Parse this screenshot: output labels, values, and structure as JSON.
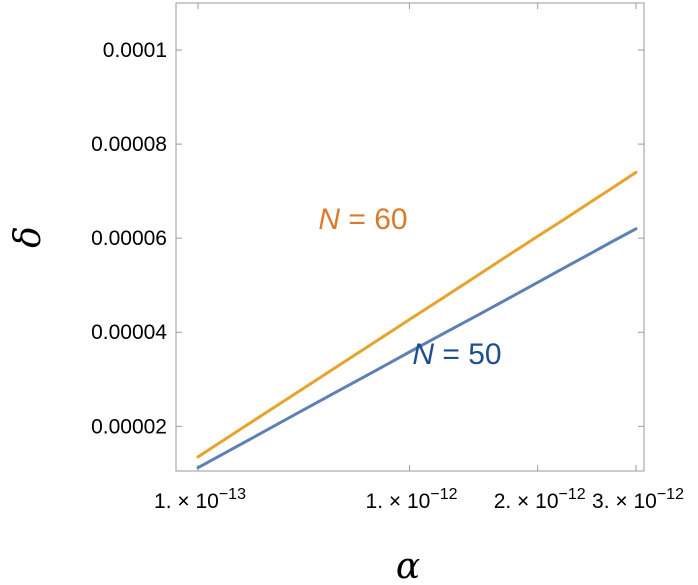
{
  "chart_data": {
    "type": "line",
    "title": "",
    "xlabel": "α",
    "ylabel": "δ",
    "x_ticks": [
      {
        "value": 1e-13,
        "mantissa": "1.",
        "exponent": "−13"
      },
      {
        "value": 1e-12,
        "mantissa": "1.",
        "exponent": "−12"
      },
      {
        "value": 2e-12,
        "mantissa": "2.",
        "exponent": "−12"
      },
      {
        "value": 3e-12,
        "mantissa": "3.",
        "exponent": "−12"
      }
    ],
    "y_ticks": [
      {
        "value": 2e-05,
        "label": "0.00002"
      },
      {
        "value": 4e-05,
        "label": "0.00004"
      },
      {
        "value": 6e-05,
        "label": "0.00006"
      },
      {
        "value": 8e-05,
        "label": "0.00008"
      },
      {
        "value": 0.0001,
        "label": "0.0001"
      }
    ],
    "ylim": [
      1.05e-05,
      0.00011
    ],
    "grid": false,
    "series": [
      {
        "name": "N = 60",
        "label_parts": {
          "var": "N",
          "rest": " = 60"
        },
        "label_color": "#DC7A2C",
        "color": "#E6A32E",
        "x": [
          1e-13,
          2e-13,
          4e-13,
          6e-13,
          8e-13,
          1e-12,
          1.25e-12,
          1.5e-12,
          1.75e-12,
          2e-12,
          2.25e-12,
          2.5e-12,
          2.75e-12,
          3e-12
        ],
        "y": [
          1.35e-05,
          1.91e-05,
          2.7e-05,
          3.31e-05,
          3.82e-05,
          4.27e-05,
          4.77e-05,
          5.23e-05,
          5.65e-05,
          6.04e-05,
          6.4e-05,
          6.75e-05,
          7.08e-05,
          7.4e-05
        ]
      },
      {
        "name": "N = 50",
        "label_parts": {
          "var": "N",
          "rest": " = 50"
        },
        "label_color": "#1F4E8C",
        "color": "#5E81B5",
        "x": [
          1e-13,
          2e-13,
          4e-13,
          6e-13,
          8e-13,
          1e-12,
          1.25e-12,
          1.5e-12,
          1.75e-12,
          2e-12,
          2.25e-12,
          2.5e-12,
          2.75e-12,
          3e-12
        ],
        "y": [
          1.12e-05,
          1.59e-05,
          2.26e-05,
          2.77e-05,
          3.2e-05,
          3.58e-05,
          4e-05,
          4.38e-05,
          4.73e-05,
          5.06e-05,
          5.37e-05,
          5.66e-05,
          5.94e-05,
          6.2e-05
        ]
      }
    ]
  }
}
